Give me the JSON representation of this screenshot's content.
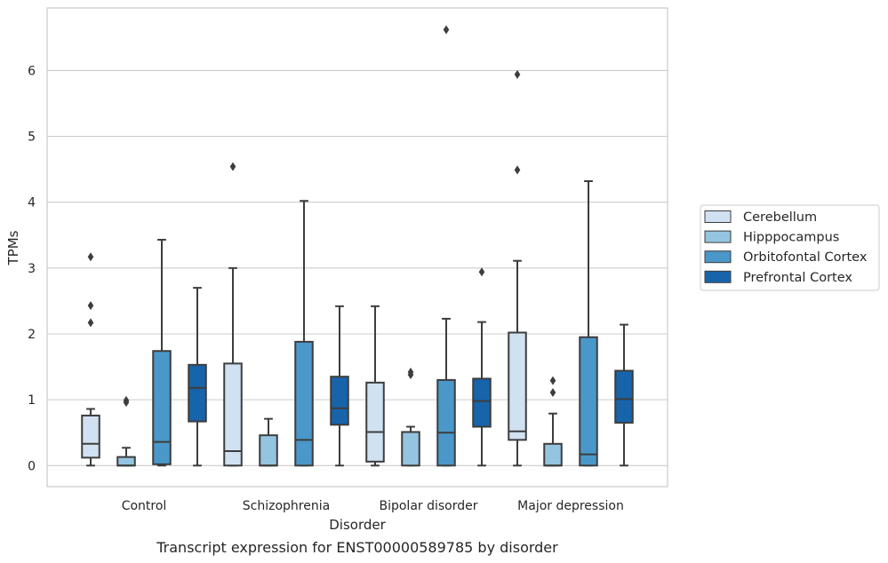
{
  "caption": "Transcript expression for ENST00000589785 by disorder",
  "chart_data": {
    "type": "box",
    "xlabel": "Disorder",
    "ylabel": "TPMs",
    "ylim": [
      -0.32,
      6.95
    ],
    "yticks": [
      0,
      1,
      2,
      3,
      4,
      5,
      6
    ],
    "grid": "horizontal",
    "legend_position": "right",
    "categories": [
      "Control",
      "Schizophrenia",
      "Bipolar disorder",
      "Major depression"
    ],
    "series": [
      {
        "name": "Cerebellum",
        "color": "#d0e1f2",
        "boxes": [
          {
            "whisker_low": 0.0,
            "q1": 0.12,
            "median": 0.33,
            "q3": 0.76,
            "whisker_high": 0.86,
            "fliers": [
              2.17,
              2.43,
              3.17
            ]
          },
          {
            "whisker_low": 0.0,
            "q1": 0.0,
            "median": 0.22,
            "q3": 1.55,
            "whisker_high": 3.0,
            "fliers": [
              4.54
            ]
          },
          {
            "whisker_low": 0.0,
            "q1": 0.06,
            "median": 0.51,
            "q3": 1.26,
            "whisker_high": 2.42,
            "fliers": []
          },
          {
            "whisker_low": 0.0,
            "q1": 0.39,
            "median": 0.52,
            "q3": 2.02,
            "whisker_high": 3.11,
            "fliers": [
              4.49,
              5.94
            ]
          }
        ]
      },
      {
        "name": "Hipppocampus",
        "color": "#94c4df",
        "boxes": [
          {
            "whisker_low": 0.0,
            "q1": 0.0,
            "median": 0.0,
            "q3": 0.13,
            "whisker_high": 0.27,
            "fliers": [
              0.96,
              0.99
            ]
          },
          {
            "whisker_low": 0.0,
            "q1": 0.0,
            "median": 0.0,
            "q3": 0.46,
            "whisker_high": 0.71,
            "fliers": []
          },
          {
            "whisker_low": 0.0,
            "q1": 0.0,
            "median": 0.51,
            "q3": 0.51,
            "whisker_high": 0.59,
            "fliers": [
              1.38,
              1.42
            ]
          },
          {
            "whisker_low": 0.0,
            "q1": 0.0,
            "median": 0.0,
            "q3": 0.33,
            "whisker_high": 0.79,
            "fliers": [
              1.11,
              1.29
            ]
          }
        ]
      },
      {
        "name": "Orbitofontal Cortex",
        "color": "#4a98c9",
        "boxes": [
          {
            "whisker_low": 0.0,
            "q1": 0.02,
            "median": 0.36,
            "q3": 1.74,
            "whisker_high": 3.43,
            "fliers": []
          },
          {
            "whisker_low": 0.0,
            "q1": 0.0,
            "median": 0.39,
            "q3": 1.88,
            "whisker_high": 4.02,
            "fliers": []
          },
          {
            "whisker_low": 0.0,
            "q1": 0.0,
            "median": 0.5,
            "q3": 1.3,
            "whisker_high": 2.23,
            "fliers": [
              6.62
            ]
          },
          {
            "whisker_low": 0.0,
            "q1": 0.0,
            "median": 0.17,
            "q3": 1.95,
            "whisker_high": 4.32,
            "fliers": []
          }
        ]
      },
      {
        "name": "Prefrontal Cortex",
        "color": "#1764ab",
        "boxes": [
          {
            "whisker_low": 0.0,
            "q1": 0.67,
            "median": 1.18,
            "q3": 1.53,
            "whisker_high": 2.7,
            "fliers": []
          },
          {
            "whisker_low": 0.0,
            "q1": 0.62,
            "median": 0.87,
            "q3": 1.35,
            "whisker_high": 2.42,
            "fliers": []
          },
          {
            "whisker_low": 0.0,
            "q1": 0.59,
            "median": 0.98,
            "q3": 1.32,
            "whisker_high": 2.18,
            "fliers": [
              2.94
            ]
          },
          {
            "whisker_low": 0.0,
            "q1": 0.65,
            "median": 1.01,
            "q3": 1.44,
            "whisker_high": 2.14,
            "fliers": []
          }
        ]
      }
    ]
  }
}
